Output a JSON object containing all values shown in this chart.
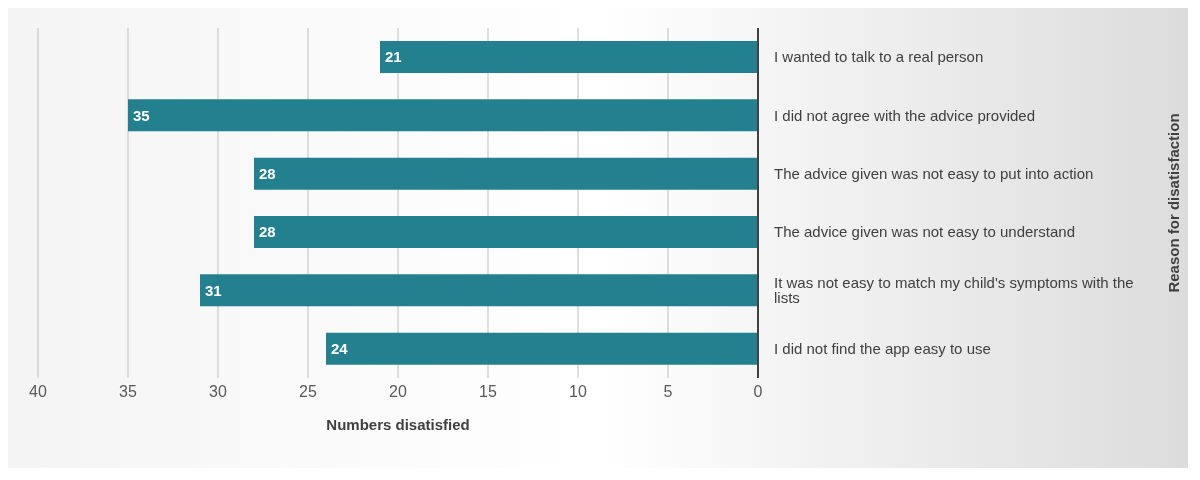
{
  "chart_data": {
    "type": "bar",
    "orientation": "horizontal",
    "categories": [
      "I wanted to talk to a real person",
      "I did not agree with the advice provided",
      "The advice given was not easy to put into action",
      "The advice given was not easy to understand",
      "It was not easy to match my child's symptoms with the lists",
      "I did not find the app easy to use"
    ],
    "values": [
      21,
      35,
      28,
      28,
      31,
      24
    ],
    "color": "#23808f",
    "xlim": [
      40,
      0
    ],
    "xticks": [
      0,
      5,
      10,
      15,
      20,
      25,
      30,
      35,
      40
    ],
    "xlabel": "Numbers disatisfied",
    "ylabel": "Reason for disatisfaction",
    "grid": "x",
    "data_labels": true
  }
}
